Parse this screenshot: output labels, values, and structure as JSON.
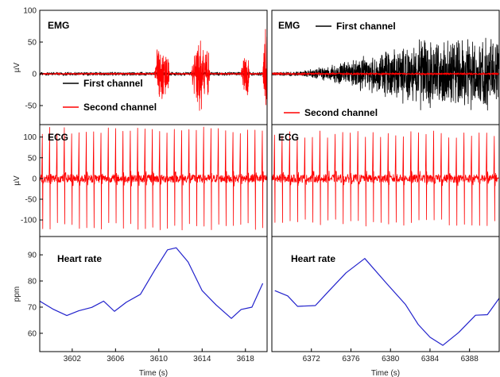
{
  "chart_data": [
    {
      "type": "line",
      "title": "EMG",
      "ylabel": "µV",
      "xlabel": "",
      "xlim": [
        3599,
        3620
      ],
      "ylim": [
        -80,
        100
      ],
      "yticks": [
        -50,
        0,
        50,
        100
      ],
      "xticks": [],
      "legend": "lower-left",
      "series": [
        {
          "name": "First channel",
          "color": "#000000",
          "envelope": [
            [
              3599,
              3
            ],
            [
              3620,
              3
            ]
          ]
        },
        {
          "name": "Second channel",
          "color": "#ff0000",
          "envelope": [
            [
              3599,
              1.5
            ],
            [
              3609.6,
              1.5
            ],
            [
              3609.8,
              40
            ],
            [
              3610.2,
              60
            ],
            [
              3610.6,
              45
            ],
            [
              3610.9,
              30
            ],
            [
              3611.0,
              1.5
            ],
            [
              3613.0,
              1.5
            ],
            [
              3613.2,
              35
            ],
            [
              3613.7,
              65
            ],
            [
              3614.2,
              55
            ],
            [
              3614.6,
              40
            ],
            [
              3614.7,
              1.5
            ],
            [
              3617.6,
              1.5
            ],
            [
              3617.8,
              40
            ],
            [
              3618.2,
              60
            ],
            [
              3618.4,
              1.5
            ],
            [
              3619.6,
              1.5
            ],
            [
              3619.8,
              90
            ],
            [
              3620,
              90
            ]
          ]
        }
      ]
    },
    {
      "type": "line",
      "title": "EMG",
      "ylabel": "",
      "xlabel": "",
      "xlim": [
        6368,
        6391
      ],
      "ylim": [
        -80,
        100
      ],
      "yticks": [],
      "xticks": [],
      "legend": "top and bottom",
      "series": [
        {
          "name": "First channel",
          "color": "#000000",
          "envelope": [
            [
              6368,
              3
            ],
            [
              6371,
              4
            ],
            [
              6374,
              15
            ],
            [
              6376,
              25
            ],
            [
              6378,
              35
            ],
            [
              6380,
              45
            ],
            [
              6382,
              55
            ],
            [
              6384,
              60
            ],
            [
              6386,
              58
            ],
            [
              6388,
              60
            ],
            [
              6391,
              60
            ]
          ]
        },
        {
          "name": "Second channel",
          "color": "#ff0000",
          "envelope": [
            [
              6368,
              2
            ],
            [
              6391,
              2
            ]
          ]
        }
      ]
    },
    {
      "type": "line",
      "title": "ECG",
      "ylabel": "µV",
      "xlabel": "",
      "xlim": [
        3599,
        3620
      ],
      "ylim": [
        -140,
        130
      ],
      "yticks": [
        -100,
        -50,
        0,
        50,
        100
      ],
      "xticks": [],
      "series": [
        {
          "name": "",
          "color": "#ff0000",
          "beats": 31,
          "peak": 125,
          "trough": -125
        }
      ]
    },
    {
      "type": "line",
      "title": "ECG",
      "ylabel": "",
      "xlabel": "",
      "xlim": [
        6368,
        6391
      ],
      "ylim": [
        -140,
        130
      ],
      "yticks": [],
      "xticks": [],
      "series": [
        {
          "name": "",
          "color": "#ff0000",
          "beats": 30,
          "peak": 115,
          "trough": -115
        }
      ]
    },
    {
      "type": "line",
      "title": "Heart rate",
      "ylabel": "ppm",
      "xlabel": "Time (s)",
      "xlim": [
        3599,
        3620
      ],
      "ylim": [
        53,
        97
      ],
      "yticks": [
        60,
        70,
        80,
        90
      ],
      "xticks": [
        3602,
        3606,
        3610,
        3614,
        3618
      ],
      "series": [
        {
          "name": "",
          "color": "#2222cc",
          "x": [
            3599.0,
            3600.2,
            3601.5,
            3602.6,
            3603.8,
            3604.9,
            3605.9,
            3607.0,
            3608.3,
            3609.6,
            3610.8,
            3611.6,
            3612.7,
            3614.0,
            3615.3,
            3616.7,
            3617.6,
            3618.6,
            3619.6
          ],
          "y": [
            72.3,
            69.3,
            66.8,
            68.6,
            69.9,
            72.3,
            68.4,
            71.9,
            74.9,
            84.0,
            91.9,
            92.7,
            87.3,
            76.3,
            70.8,
            65.7,
            69.1,
            70.0,
            79.1
          ]
        }
      ]
    },
    {
      "type": "line",
      "title": "Heart rate",
      "ylabel": "",
      "xlabel": "Time (s)",
      "xlim": [
        6368,
        6391
      ],
      "ylim": [
        53,
        97
      ],
      "yticks": [],
      "xticks": [
        6372,
        6376,
        6380,
        6384,
        6388
      ],
      "series": [
        {
          "name": "",
          "color": "#2222cc",
          "x": [
            6368.3,
            6369.6,
            6370.6,
            6372.4,
            6373.8,
            6375.5,
            6377.4,
            6379.6,
            6381.5,
            6382.8,
            6384.0,
            6385.3,
            6386.9,
            6388.6,
            6389.8,
            6391.0
          ],
          "y": [
            76.3,
            74.3,
            70.3,
            70.6,
            76.3,
            83.1,
            88.6,
            79.1,
            71.1,
            63.4,
            58.5,
            55.4,
            60.3,
            66.9,
            67.1,
            73.4
          ]
        }
      ]
    }
  ]
}
